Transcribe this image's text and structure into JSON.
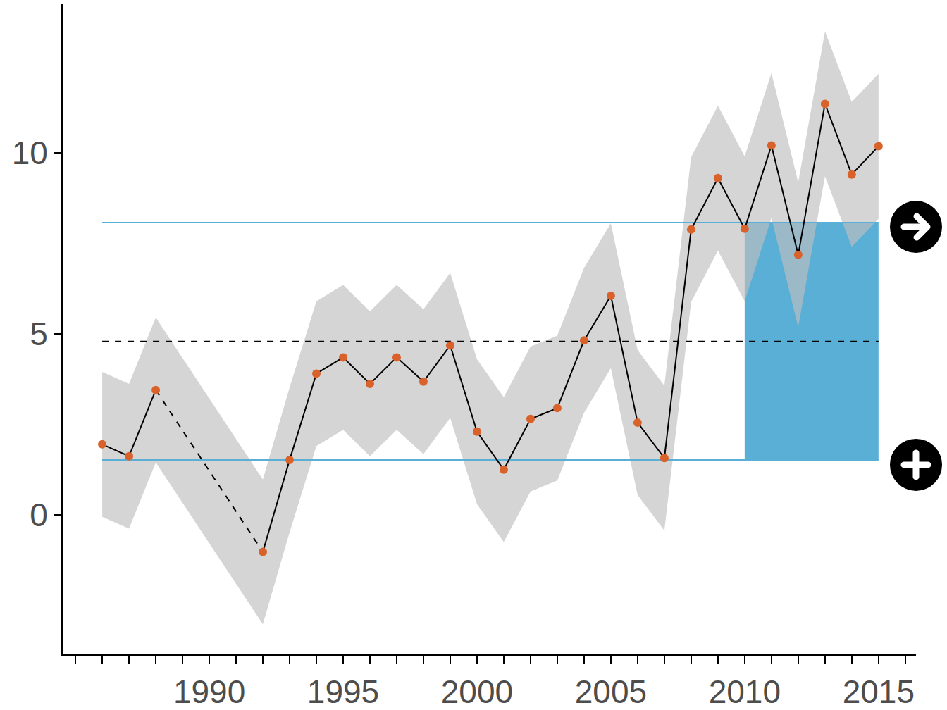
{
  "chart_data": {
    "type": "line",
    "x": [
      1986,
      1987,
      1988,
      1989,
      1990,
      1991,
      1992,
      1993,
      1994,
      1995,
      1996,
      1997,
      1998,
      1999,
      2000,
      2001,
      2002,
      2003,
      2004,
      2005,
      2006,
      2007,
      2008,
      2009,
      2010,
      2011,
      2012,
      2013,
      2014,
      2015
    ],
    "values": [
      1.95,
      1.62,
      3.45,
      null,
      null,
      null,
      -1.02,
      1.52,
      3.9,
      4.35,
      3.62,
      4.35,
      3.68,
      4.68,
      2.3,
      1.25,
      2.65,
      2.95,
      4.82,
      6.05,
      2.55,
      1.57,
      7.88,
      9.3,
      7.9,
      10.2,
      7.18,
      11.35,
      9.4,
      10.18
    ],
    "lower": [
      -0.05,
      -0.38,
      1.45,
      null,
      null,
      null,
      -3.02,
      -0.48,
      1.9,
      2.35,
      1.62,
      2.35,
      1.68,
      2.68,
      0.3,
      -0.75,
      0.65,
      0.95,
      2.82,
      4.05,
      0.55,
      -0.43,
      5.88,
      7.3,
      5.9,
      8.2,
      5.18,
      9.35,
      7.4,
      8.18
    ],
    "upper": [
      3.95,
      3.62,
      5.45,
      null,
      null,
      null,
      0.98,
      3.52,
      5.9,
      6.35,
      5.62,
      6.35,
      5.68,
      6.68,
      4.3,
      3.25,
      4.65,
      4.95,
      6.82,
      8.05,
      4.55,
      3.57,
      9.88,
      11.3,
      9.9,
      12.2,
      9.18,
      13.35,
      11.4,
      12.18
    ],
    "color": "#d9622b",
    "band_color": "#d3d3d3",
    "mean": 4.79,
    "reference_lines": [
      8.07,
      1.52
    ],
    "reference_color": "#5aafd6",
    "highlight": {
      "x": [
        2010,
        2015
      ],
      "y": [
        1.52,
        8.07
      ],
      "color": "#5aafd6"
    },
    "xlim": [
      1984.55,
      2016.4
    ],
    "xticks": [
      1990,
      1995,
      2000,
      2005,
      2010,
      2015
    ],
    "ylim": [
      -3.83,
      14.12
    ],
    "yticks": [
      0,
      5,
      10
    ],
    "grid": false
  }
}
